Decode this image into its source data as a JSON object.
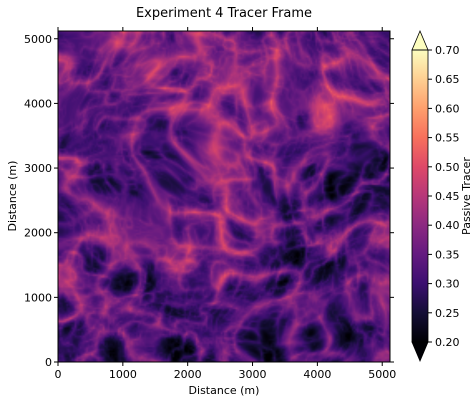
{
  "chart_data": {
    "type": "heatmap",
    "title": "Experiment 4 Tracer Frame",
    "xlabel": "Distance (m)",
    "ylabel": "Distance (m)",
    "xlim": [
      0,
      5120
    ],
    "ylim": [
      0,
      5120
    ],
    "xticks": [
      0,
      1000,
      2000,
      3000,
      4000,
      5000
    ],
    "yticks": [
      0,
      1000,
      2000,
      3000,
      4000,
      5000
    ],
    "xtick_labels": [
      "0",
      "1000",
      "2000",
      "3000",
      "4000",
      "5000"
    ],
    "ytick_labels": [
      "0",
      "1000",
      "2000",
      "3000",
      "4000",
      "5000"
    ],
    "colormap": "magma",
    "colorbar": {
      "label": "Passive Tracer",
      "range": [
        0.2,
        0.7
      ],
      "ticks": [
        0.2,
        0.25,
        0.3,
        0.35,
        0.4,
        0.45,
        0.5,
        0.55,
        0.6,
        0.65,
        0.7
      ],
      "tick_labels": [
        "0.20",
        "0.25",
        "0.30",
        "0.35",
        "0.40",
        "0.45",
        "0.50",
        "0.55",
        "0.60",
        "0.65",
        "0.70"
      ],
      "extend": "both"
    },
    "field_description_values": {
      "typical_min": 0.25,
      "typical_max": 0.62,
      "background_mean": 0.4
    }
  }
}
